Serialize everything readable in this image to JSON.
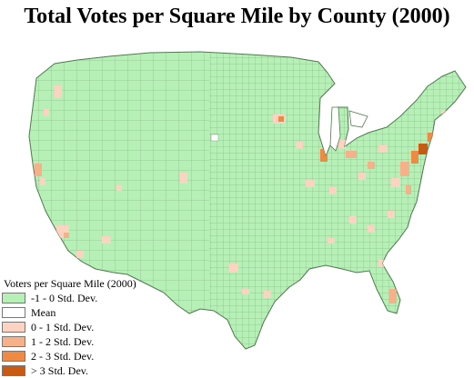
{
  "title": "Total Votes per Square Mile by County (2000)",
  "legend": {
    "title": "Voters per Square Mile (2000)",
    "items": [
      {
        "label": "-1 - 0 Std. Dev.",
        "color": "#b6f0b6"
      },
      {
        "label": "Mean",
        "color": "#ffffff"
      },
      {
        "label": "0 - 1 Std. Dev.",
        "color": "#fbd3c0"
      },
      {
        "label": "1 - 2 Std. Dev.",
        "color": "#f6b08a"
      },
      {
        "label": "2 - 3 Std. Dev.",
        "color": "#ef8a45"
      },
      {
        "label": "> 3 Std. Dev.",
        "color": "#c85a14"
      }
    ]
  },
  "map": {
    "base_color": "#b6f0b6",
    "border_color": "#6f9c6f",
    "region": "Contiguous United States counties"
  }
}
